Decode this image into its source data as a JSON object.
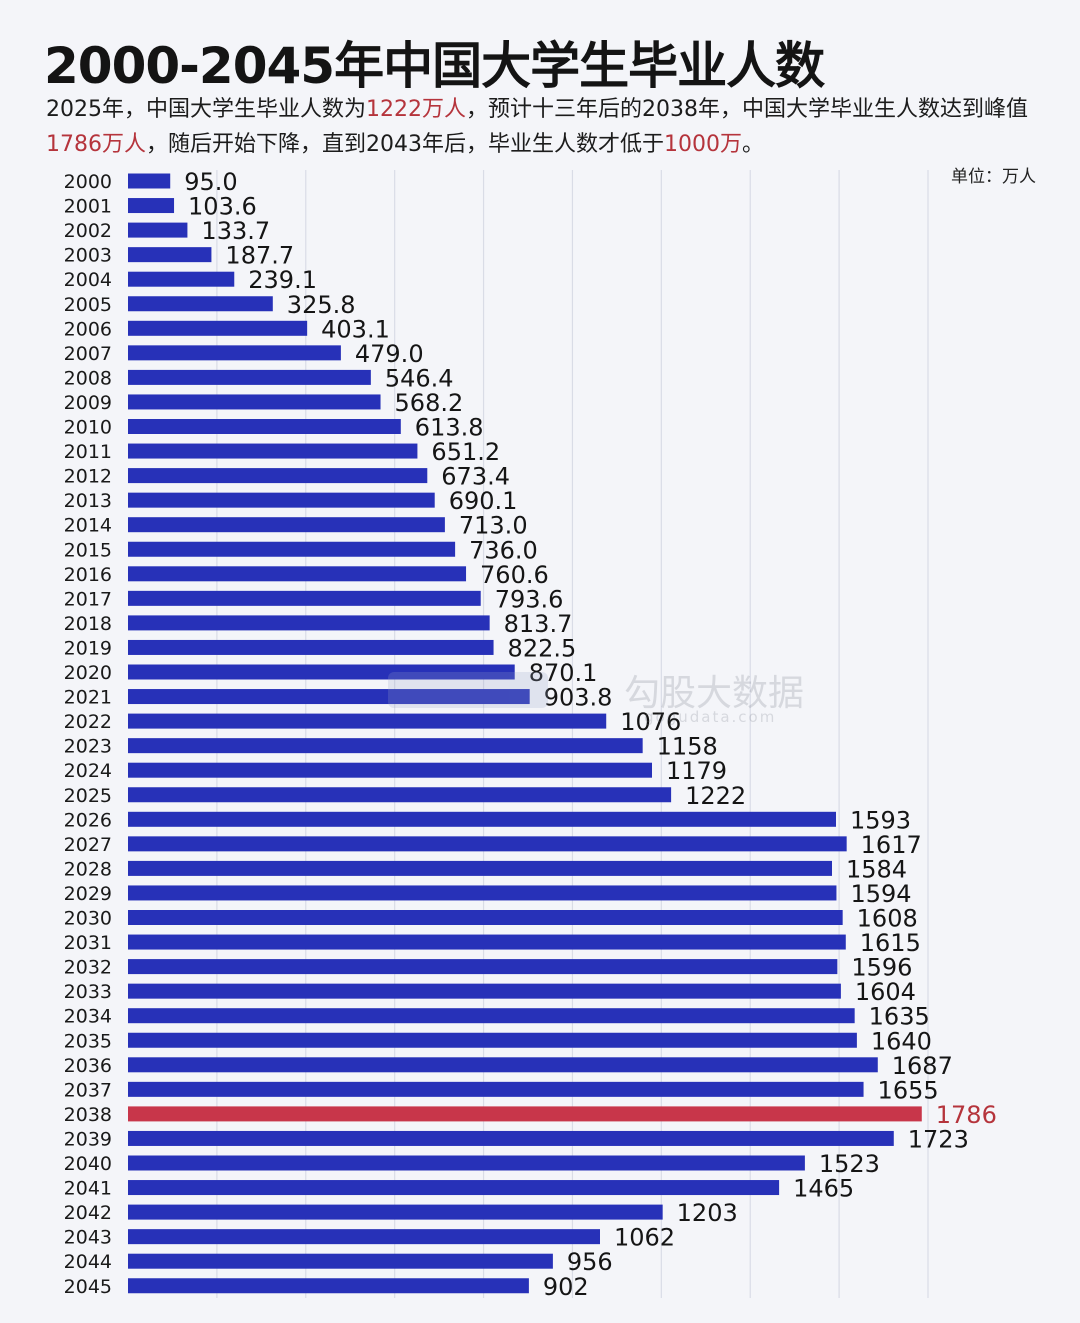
{
  "header": {
    "title": "2000-2045年中国大学生毕业人数",
    "subtitle_parts": [
      "2025年，中国大学生毕业人数为",
      "1222万人",
      "，预计十三年后的2038年，中国大学毕业生人数达到峰值",
      "1786万人",
      "，随后开始下降，直到2043年后，毕业生人数才低于",
      "1000万",
      "。"
    ],
    "unit": "单位：万人"
  },
  "watermark": {
    "text": "勾股大数据",
    "url": "gogudata.com"
  },
  "colors": {
    "bar": "#2731b8",
    "bar_highlight": "#c8364a",
    "highlight_text": "#b5343c",
    "grid": "#d9dce6",
    "background": "#f4f5f9"
  },
  "chart_data": {
    "type": "bar",
    "orientation": "horizontal",
    "categories": [
      "2000",
      "2001",
      "2002",
      "2003",
      "2004",
      "2005",
      "2006",
      "2007",
      "2008",
      "2009",
      "2010",
      "2011",
      "2012",
      "2013",
      "2014",
      "2015",
      "2016",
      "2017",
      "2018",
      "2019",
      "2020",
      "2021",
      "2022",
      "2023",
      "2024",
      "2025",
      "2026",
      "2027",
      "2028",
      "2029",
      "2030",
      "2031",
      "2032",
      "2033",
      "2034",
      "2035",
      "2036",
      "2037",
      "2038",
      "2039",
      "2040",
      "2041",
      "2042",
      "2043",
      "2044",
      "2045"
    ],
    "values": [
      95.0,
      103.6,
      133.7,
      187.7,
      239.1,
      325.8,
      403.1,
      479.0,
      546.4,
      568.2,
      613.8,
      651.2,
      673.4,
      690.1,
      713.0,
      736.0,
      760.6,
      793.6,
      813.7,
      822.5,
      870.1,
      903.8,
      1076,
      1158,
      1179,
      1222,
      1593,
      1617,
      1584,
      1594,
      1608,
      1615,
      1596,
      1604,
      1635,
      1640,
      1687,
      1655,
      1786,
      1723,
      1523,
      1465,
      1203,
      1062,
      956,
      902
    ],
    "value_labels": [
      "95.0",
      "103.6",
      "133.7",
      "187.7",
      "239.1",
      "325.8",
      "403.1",
      "479.0",
      "546.4",
      "568.2",
      "613.8",
      "651.2",
      "673.4",
      "690.1",
      "713.0",
      "736.0",
      "760.6",
      "793.6",
      "813.7",
      "822.5",
      "870.1",
      "903.8",
      "1076",
      "1158",
      "1179",
      "1222",
      "1593",
      "1617",
      "1584",
      "1594",
      "1608",
      "1615",
      "1596",
      "1604",
      "1635",
      "1640",
      "1687",
      "1655",
      "1786",
      "1723",
      "1523",
      "1465",
      "1203",
      "1062",
      "956",
      "902"
    ],
    "highlight_category": "2038",
    "xlim": [
      0,
      1800
    ],
    "grid": true,
    "legend": "none",
    "title": "2000-2045年中国大学生毕业人数",
    "xlabel": "",
    "ylabel": ""
  }
}
